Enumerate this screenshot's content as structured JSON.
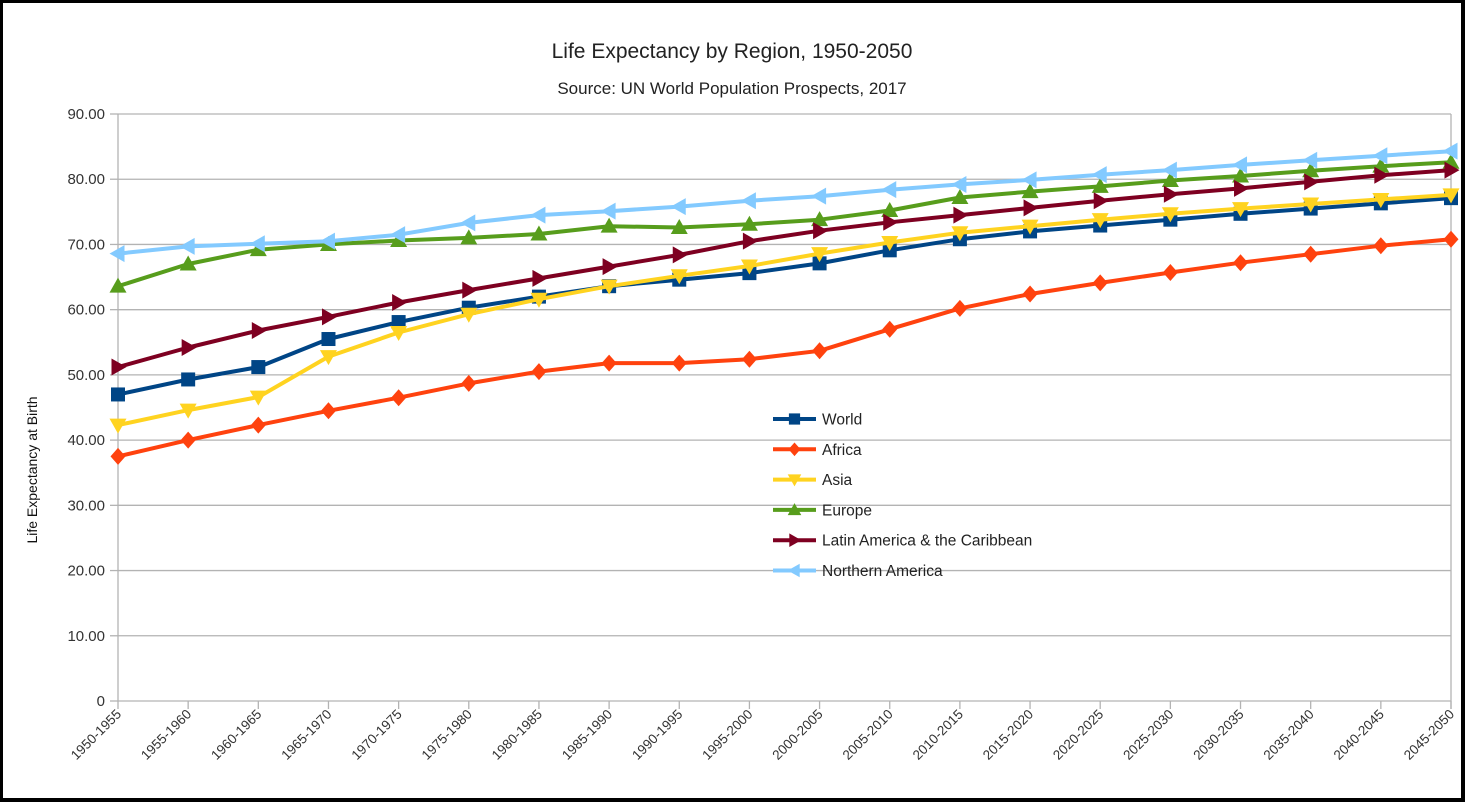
{
  "chart_data": {
    "type": "line",
    "title": "Life Expectancy by Region, 1950-2050",
    "subtitle": "Source: UN World Population Prospects, 2017",
    "xlabel": "",
    "ylabel": "Life Expectancy at Birth",
    "ylim": [
      0,
      90
    ],
    "yticks": [
      0,
      10,
      20,
      30,
      40,
      50,
      60,
      70,
      80,
      90
    ],
    "ytick_labels": [
      "0",
      "10.00",
      "20.00",
      "30.00",
      "40.00",
      "50.00",
      "60.00",
      "70.00",
      "80.00",
      "90.00"
    ],
    "grid": true,
    "legend_position": "center",
    "categories": [
      "1950-1955",
      "1955-1960",
      "1960-1965",
      "1965-1970",
      "1970-1975",
      "1975-1980",
      "1980-1985",
      "1985-1990",
      "1990-1995",
      "1995-2000",
      "2000-2005",
      "2005-2010",
      "2010-2015",
      "2015-2020",
      "2020-2025",
      "2025-2030",
      "2030-2035",
      "2035-2040",
      "2040-2045",
      "2045-2050"
    ],
    "series": [
      {
        "name": "World",
        "color": "#004586",
        "marker": "square",
        "values": [
          47.0,
          49.3,
          51.2,
          55.5,
          58.1,
          60.3,
          62.0,
          63.6,
          64.6,
          65.6,
          67.1,
          69.1,
          70.8,
          72.0,
          72.9,
          73.8,
          74.7,
          75.5,
          76.3,
          77.1
        ]
      },
      {
        "name": "Africa",
        "color": "#ff420e",
        "marker": "diamond",
        "values": [
          37.5,
          40.0,
          42.3,
          44.5,
          46.5,
          48.7,
          50.5,
          51.8,
          51.8,
          52.4,
          53.7,
          57.0,
          60.2,
          62.4,
          64.1,
          65.7,
          67.2,
          68.5,
          69.8,
          70.8
        ]
      },
      {
        "name": "Asia",
        "color": "#ffd320",
        "marker": "triangle-down",
        "values": [
          42.3,
          44.6,
          46.6,
          52.8,
          56.5,
          59.3,
          61.6,
          63.6,
          65.2,
          66.7,
          68.6,
          70.3,
          71.8,
          72.8,
          73.8,
          74.7,
          75.5,
          76.2,
          76.9,
          77.6
        ]
      },
      {
        "name": "Europe",
        "color": "#579d1c",
        "marker": "triangle-up",
        "values": [
          63.6,
          67.0,
          69.2,
          70.0,
          70.6,
          71.0,
          71.6,
          72.8,
          72.6,
          73.1,
          73.8,
          75.2,
          77.2,
          78.1,
          78.9,
          79.8,
          80.5,
          81.3,
          82.0,
          82.6
        ]
      },
      {
        "name": "Latin America & the Caribbean",
        "color": "#7e0021",
        "marker": "triangle-right",
        "values": [
          51.2,
          54.2,
          56.8,
          58.9,
          61.1,
          63.0,
          64.8,
          66.6,
          68.4,
          70.5,
          72.1,
          73.4,
          74.5,
          75.6,
          76.7,
          77.7,
          78.6,
          79.6,
          80.6,
          81.4
        ]
      },
      {
        "name": "Northern America",
        "color": "#83caff",
        "marker": "triangle-left",
        "values": [
          68.6,
          69.7,
          70.1,
          70.5,
          71.5,
          73.3,
          74.5,
          75.1,
          75.8,
          76.7,
          77.4,
          78.4,
          79.2,
          79.9,
          80.7,
          81.4,
          82.2,
          82.9,
          83.6,
          84.3
        ]
      }
    ]
  }
}
